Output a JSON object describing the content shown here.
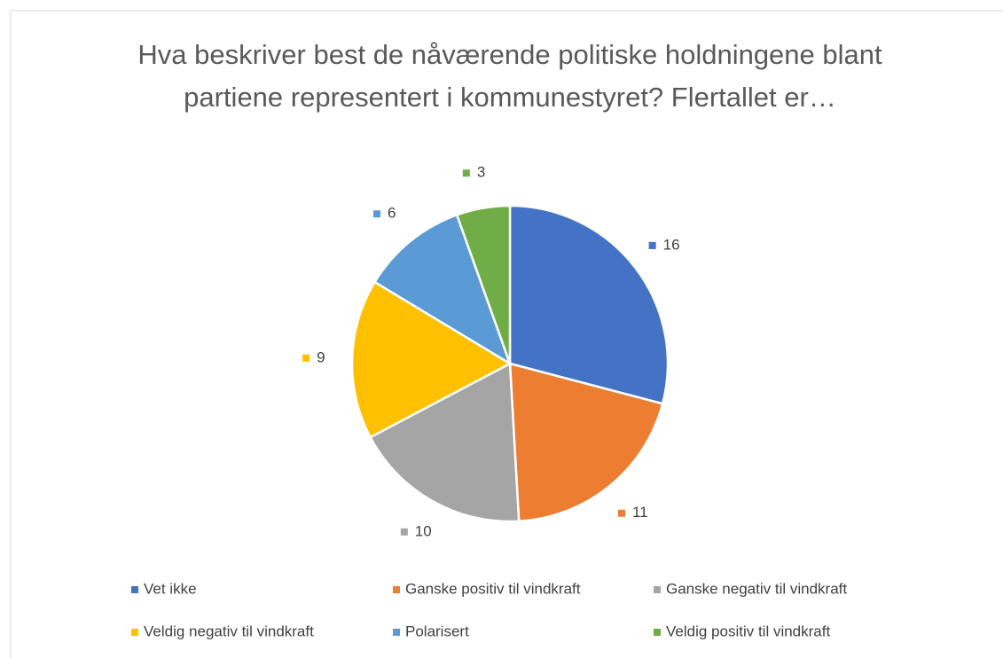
{
  "chart_data": {
    "type": "pie",
    "title": "Hva beskriver best de nåværende politiske holdningene blant partiene representert i kommunestyret? Flertallet er…",
    "categories": [
      "Vet ikke",
      "Ganske positiv til vindkraft",
      "Ganske negativ til vindkraft",
      "Veldig negativ til vindkraft",
      "Polarisert",
      "Veldig positiv til vindkraft"
    ],
    "values": [
      16,
      11,
      10,
      9,
      6,
      3
    ],
    "colors": [
      "#4472c4",
      "#ed7d31",
      "#a5a5a5",
      "#ffc000",
      "#5b9bd5",
      "#70ad47"
    ],
    "legend": "bottom"
  }
}
